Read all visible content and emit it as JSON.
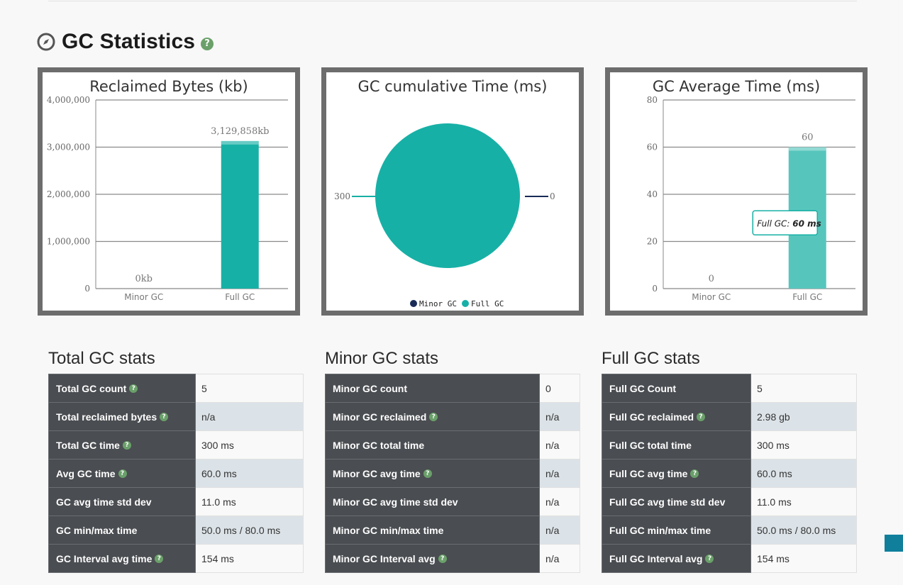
{
  "header": {
    "title": "GC Statistics",
    "help": "?"
  },
  "charts": [
    {
      "chart_data": {
        "type": "bar",
        "title": "Reclaimed Bytes (kb)",
        "categories": [
          "Minor GC",
          "Full GC"
        ],
        "values": [
          0,
          3129858
        ],
        "data_labels": [
          "0kb",
          "3,129,858kb"
        ],
        "ylim": [
          0,
          4000000
        ],
        "yticks": [
          0,
          1000000,
          2000000,
          3000000,
          4000000
        ],
        "ytick_labels": [
          "0",
          "1,000,000",
          "2,000,000",
          "3,000,000",
          "4,000,000"
        ],
        "grid": true,
        "color": "#17b0a6"
      }
    },
    {
      "chart_data": {
        "type": "pie",
        "title": "GC cumulative Time (ms)",
        "slices": [
          {
            "name": "Minor GC",
            "value": 0,
            "label": "0",
            "color": "#182b57"
          },
          {
            "name": "Full GC",
            "value": 300,
            "label": "300",
            "color": "#17b0a6"
          }
        ],
        "legend": "bottom-center"
      }
    },
    {
      "chart_data": {
        "type": "bar",
        "title": "GC Average Time (ms)",
        "categories": [
          "Minor GC",
          "Full GC"
        ],
        "values": [
          0,
          60
        ],
        "data_labels": [
          "0",
          "60"
        ],
        "ylim": [
          0,
          80
        ],
        "yticks": [
          0,
          20,
          40,
          60,
          80
        ],
        "ytick_labels": [
          "0",
          "20",
          "40",
          "60",
          "80"
        ],
        "grid": true,
        "color": "#56c6bd",
        "tooltip": {
          "series": "Full GC",
          "value": "60 ms"
        }
      }
    }
  ],
  "stats": [
    {
      "title": "Total GC stats",
      "rows": [
        {
          "label": "Total GC count",
          "help": true,
          "value": "5"
        },
        {
          "label": "Total reclaimed bytes",
          "help": true,
          "value": "n/a"
        },
        {
          "label": "Total GC time",
          "help": true,
          "value": "300 ms"
        },
        {
          "label": "Avg GC time",
          "help": true,
          "value": "60.0 ms"
        },
        {
          "label": "GC avg time std dev",
          "help": false,
          "value": "11.0 ms"
        },
        {
          "label": "GC min/max time",
          "help": false,
          "value": "50.0 ms / 80.0 ms"
        },
        {
          "label": "GC Interval avg time",
          "help": true,
          "value": "154 ms"
        }
      ]
    },
    {
      "title": "Minor GC stats",
      "rows": [
        {
          "label": "Minor GC count",
          "help": false,
          "value": "0"
        },
        {
          "label": "Minor GC reclaimed",
          "help": true,
          "value": "n/a"
        },
        {
          "label": "Minor GC total time",
          "help": false,
          "value": "n/a"
        },
        {
          "label": "Minor GC avg time",
          "help": true,
          "value": "n/a"
        },
        {
          "label": "Minor GC avg time std dev",
          "help": false,
          "value": "n/a"
        },
        {
          "label": "Minor GC min/max time",
          "help": false,
          "value": "n/a"
        },
        {
          "label": "Minor GC Interval avg",
          "help": true,
          "value": "n/a"
        }
      ]
    },
    {
      "title": "Full GC stats",
      "rows": [
        {
          "label": "Full GC Count",
          "help": false,
          "value": "5"
        },
        {
          "label": "Full GC reclaimed",
          "help": true,
          "value": "2.98 gb"
        },
        {
          "label": "Full GC total time",
          "help": false,
          "value": "300 ms"
        },
        {
          "label": "Full GC avg time",
          "help": true,
          "value": "60.0 ms"
        },
        {
          "label": "Full GC avg time std dev",
          "help": false,
          "value": "11.0 ms"
        },
        {
          "label": "Full GC min/max time",
          "help": false,
          "value": "50.0 ms / 80.0 ms"
        },
        {
          "label": "Full GC Interval avg",
          "help": true,
          "value": "154 ms"
        }
      ]
    }
  ]
}
